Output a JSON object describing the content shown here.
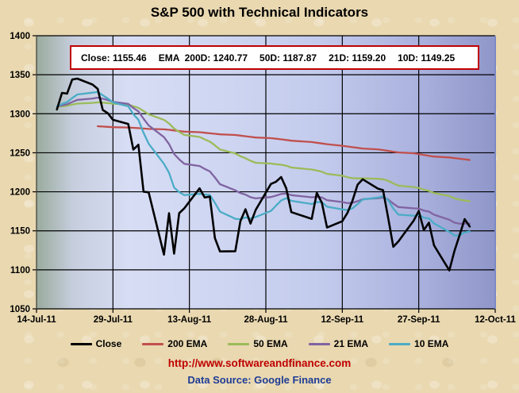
{
  "title": "S&P 500 with Technical Indicators",
  "info_box": {
    "segments": [
      "Close: 1155.46",
      "EMA  200D: 1240.77",
      "50D: 1187.87",
      "21D: 1159.20",
      "10D: 1149.25"
    ]
  },
  "footer": {
    "url": "http://www.softwareandfinance.com",
    "source": "Data Source: Google Finance"
  },
  "colors": {
    "background": "#e9d8b0",
    "info_border": "#c00000",
    "url_text": "#c00000",
    "source_text": "#1e3c96",
    "gridline": "#000000",
    "plot_right_border": "#7b89c4",
    "plot_gradient": [
      "#9aab9d",
      "#c6cede",
      "#d7ddf4",
      "#ced5f1",
      "#c3cbed",
      "#acb3df",
      "#8f96c9"
    ]
  },
  "chart_data": {
    "type": "line",
    "title": "S&P 500 with Technical Indicators",
    "xlabel": "",
    "ylabel": "",
    "ylim": [
      1050,
      1400
    ],
    "y_ticks": [
      1050,
      1100,
      1150,
      1200,
      1250,
      1300,
      1350,
      1400
    ],
    "x_tick_labels": [
      "14-Jul-11",
      "29-Jul-11",
      "13-Aug-11",
      "28-Aug-11",
      "12-Sep-11",
      "27-Sep-11",
      "12-Oct-11"
    ],
    "xlim_days": [
      0,
      90
    ],
    "grid": true,
    "legend_position": "bottom",
    "dates": [
      "14-Jul-11",
      "15-Jul-11",
      "18-Jul-11",
      "19-Jul-11",
      "20-Jul-11",
      "21-Jul-11",
      "22-Jul-11",
      "25-Jul-11",
      "26-Jul-11",
      "27-Jul-11",
      "28-Jul-11",
      "29-Jul-11",
      "1-Aug-11",
      "2-Aug-11",
      "3-Aug-11",
      "4-Aug-11",
      "5-Aug-11",
      "8-Aug-11",
      "9-Aug-11",
      "10-Aug-11",
      "11-Aug-11",
      "12-Aug-11",
      "15-Aug-11",
      "16-Aug-11",
      "17-Aug-11",
      "18-Aug-11",
      "19-Aug-11",
      "22-Aug-11",
      "23-Aug-11",
      "24-Aug-11",
      "25-Aug-11",
      "26-Aug-11",
      "29-Aug-11",
      "30-Aug-11",
      "31-Aug-11",
      "1-Sep-11",
      "2-Sep-11",
      "6-Sep-11",
      "7-Sep-11",
      "8-Sep-11",
      "9-Sep-11",
      "12-Sep-11",
      "13-Sep-11",
      "14-Sep-11",
      "15-Sep-11",
      "16-Sep-11",
      "19-Sep-11",
      "20-Sep-11",
      "21-Sep-11",
      "22-Sep-11",
      "23-Sep-11",
      "26-Sep-11",
      "27-Sep-11",
      "28-Sep-11",
      "29-Sep-11",
      "30-Sep-11",
      "3-Oct-11",
      "4-Oct-11",
      "5-Oct-11",
      "6-Oct-11",
      "7-Oct-11"
    ],
    "day_offsets": [
      0,
      1,
      4,
      5,
      6,
      7,
      8,
      11,
      12,
      13,
      14,
      15,
      18,
      19,
      20,
      21,
      22,
      25,
      26,
      27,
      28,
      29,
      32,
      33,
      34,
      35,
      36,
      39,
      40,
      41,
      42,
      43,
      46,
      47,
      48,
      49,
      50,
      54,
      55,
      56,
      57,
      60,
      61,
      62,
      63,
      64,
      67,
      68,
      69,
      70,
      71,
      74,
      75,
      76,
      77,
      78,
      81,
      82,
      83,
      84,
      85
    ],
    "series": [
      {
        "name": "Close",
        "color": "#000000",
        "stroke_width": 2.6,
        "values": [
          null,
          null,
          1305.44,
          1326.73,
          1325.84,
          1343.8,
          1345.02,
          1337.43,
          1331.94,
          1304.89,
          1300.67,
          1292.28,
          1286.94,
          1254.05,
          1260.34,
          1200.07,
          1199.38,
          1119.46,
          1172.53,
          1120.76,
          1172.64,
          1178.81,
          1204.49,
          1192.76,
          1193.89,
          1140.65,
          1123.53,
          1123.82,
          1162.35,
          1177.6,
          1159.27,
          1176.8,
          1210.08,
          1212.92,
          1218.89,
          1204.42,
          1173.97,
          1165.24,
          1198.62,
          1185.9,
          1154.23,
          1162.27,
          1172.87,
          1188.68,
          1209.11,
          1216.01,
          1204.09,
          1202.09,
          1166.76,
          1129.56,
          1136.43,
          1162.95,
          1175.38,
          1151.06,
          1160.4,
          1131.42,
          1099.23,
          1123.95,
          1144.03,
          1164.97,
          1155.46
        ]
      },
      {
        "name": "200 EMA",
        "color": "#c0504d",
        "stroke_width": 2.3,
        "values": [
          null,
          null,
          null,
          null,
          null,
          null,
          null,
          null,
          1284.0,
          1283.6,
          1283.2,
          1282.8,
          1282.4,
          1282.0,
          1281.6,
          1281.1,
          1280.6,
          1280.0,
          1279.4,
          1278.6,
          1277.9,
          1277.1,
          1276.4,
          1275.7,
          1275.0,
          1274.3,
          1273.6,
          1272.8,
          1272.0,
          1271.2,
          1270.4,
          1269.6,
          1268.8,
          1268.0,
          1267.2,
          1266.4,
          1265.5,
          1263.8,
          1262.8,
          1261.9,
          1261.0,
          1259.0,
          1258.1,
          1257.2,
          1256.3,
          1255.4,
          1254.4,
          1253.5,
          1252.5,
          1251.4,
          1250.4,
          1249.4,
          1248.4,
          1247.3,
          1246.2,
          1245.1,
          1244.0,
          1243.2,
          1242.4,
          1241.6,
          1240.77
        ]
      },
      {
        "name": "50 EMA",
        "color": "#9bbb59",
        "stroke_width": 2.3,
        "values": [
          null,
          null,
          1309.01,
          1309.7,
          1310.33,
          1311.65,
          1312.96,
          1313.92,
          1314.62,
          1314.24,
          1313.71,
          1312.87,
          1311.85,
          1309.59,
          1307.66,
          1303.44,
          1299.36,
          1292.3,
          1287.6,
          1281.06,
          1276.81,
          1272.97,
          1270.28,
          1267.24,
          1264.36,
          1259.51,
          1254.18,
          1249.07,
          1245.67,
          1243.0,
          1239.72,
          1237.25,
          1236.18,
          1235.27,
          1234.63,
          1233.44,
          1231.11,
          1228.53,
          1227.36,
          1225.73,
          1222.93,
          1220.55,
          1218.68,
          1217.5,
          1217.17,
          1217.13,
          1216.62,
          1216.05,
          1214.12,
          1210.8,
          1207.88,
          1206.12,
          1204.92,
          1202.81,
          1201.14,
          1198.41,
          1194.52,
          1191.75,
          1189.88,
          1188.9,
          1187.87
        ]
      },
      {
        "name": "21 EMA",
        "color": "#8064a2",
        "stroke_width": 2.3,
        "values": [
          null,
          null,
          1309.16,
          1310.76,
          1312.13,
          1315.01,
          1317.74,
          1319.53,
          1320.66,
          1319.23,
          1317.54,
          1315.24,
          1312.67,
          1307.34,
          1303.07,
          1293.71,
          1285.13,
          1270.07,
          1261.2,
          1248.43,
          1241.54,
          1235.84,
          1232.99,
          1229.33,
          1226.11,
          1218.34,
          1209.72,
          1201.91,
          1198.31,
          1196.43,
          1193.05,
          1191.57,
          1193.25,
          1195.04,
          1197.21,
          1197.87,
          1195.7,
          1192.93,
          1193.45,
          1192.76,
          1189.26,
          1186.81,
          1185.54,
          1185.83,
          1187.95,
          1190.5,
          1191.74,
          1192.68,
          1190.32,
          1184.8,
          1180.4,
          1178.81,
          1178.5,
          1176.01,
          1174.59,
          1170.67,
          1164.18,
          1160.52,
          1159.02,
          1159.56,
          1159.2
        ]
      },
      {
        "name": "10 EMA",
        "color": "#4bacc6",
        "stroke_width": 2.3,
        "values": [
          null,
          null,
          1309.33,
          1312.49,
          1314.92,
          1320.17,
          1324.69,
          1327.01,
          1327.91,
          1323.72,
          1319.53,
          1314.58,
          1309.55,
          1299.46,
          1292.35,
          1275.57,
          1261.72,
          1235.85,
          1224.34,
          1205.51,
          1199.53,
          1195.76,
          1197.35,
          1196.52,
          1196.04,
          1185.97,
          1174.62,
          1165.38,
          1164.83,
          1167.15,
          1165.72,
          1167.73,
          1175.43,
          1182.25,
          1188.91,
          1191.73,
          1188.5,
          1184.27,
          1186.88,
          1186.7,
          1180.8,
          1177.43,
          1176.6,
          1178.8,
          1184.31,
          1190.07,
          1192.62,
          1194.34,
          1189.33,
          1178.46,
          1170.82,
          1169.39,
          1170.48,
          1166.95,
          1165.76,
          1159.52,
          1148.56,
          1144.08,
          1144.07,
          1147.87,
          1149.25
        ]
      }
    ]
  }
}
